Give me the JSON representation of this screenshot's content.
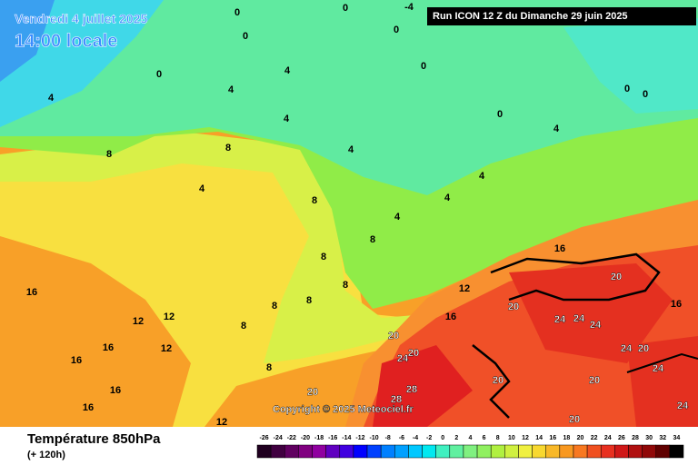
{
  "header": {
    "date": "Vendredi 4 juillet 2025",
    "time": "14:00 locale",
    "run": "Run ICON 12 Z du Dimanche 29 juin 2025"
  },
  "footer": {
    "title": "Température 850hPa",
    "subtitle": "(+ 120h)",
    "copyright": "Copyright © 2025 Meteociel.fr"
  },
  "legend": {
    "ticks": [
      -26,
      -24,
      -22,
      -20,
      -18,
      -16,
      -14,
      -12,
      -10,
      -8,
      -6,
      -4,
      -2,
      0,
      2,
      4,
      6,
      8,
      10,
      12,
      14,
      16,
      18,
      20,
      22,
      24,
      26,
      28,
      30,
      32,
      34
    ],
    "colors": [
      "#200020",
      "#400040",
      "#600060",
      "#800080",
      "#9000a0",
      "#6000c0",
      "#4000e0",
      "#0000ff",
      "#0040ff",
      "#0080ff",
      "#00a0ff",
      "#00c8ff",
      "#00e8f0",
      "#40f0c0",
      "#60f0a0",
      "#80f080",
      "#90f060",
      "#b0f040",
      "#d0f040",
      "#f0f040",
      "#f8d830",
      "#f8b828",
      "#f89820",
      "#f87820",
      "#f05020",
      "#e83020",
      "#d01818",
      "#b01010",
      "#900808",
      "#600000",
      "#000000"
    ]
  },
  "map": {
    "labels": [
      "-4",
      "0",
      "0",
      "0",
      "0",
      "0",
      "0",
      "0",
      "0",
      "0",
      "4",
      "4",
      "4",
      "4",
      "4",
      "4",
      "4",
      "4",
      "4",
      "4",
      "8",
      "8",
      "8",
      "8",
      "8",
      "8",
      "8",
      "8",
      "8",
      "8",
      "12",
      "12",
      "12",
      "12",
      "12",
      "16",
      "16",
      "16",
      "16",
      "16",
      "16",
      "16",
      "16",
      "20",
      "20",
      "20",
      "20",
      "20",
      "20",
      "20",
      "20",
      "20",
      "24",
      "24",
      "24",
      "24",
      "24",
      "24",
      "24",
      "28",
      "28"
    ]
  }
}
